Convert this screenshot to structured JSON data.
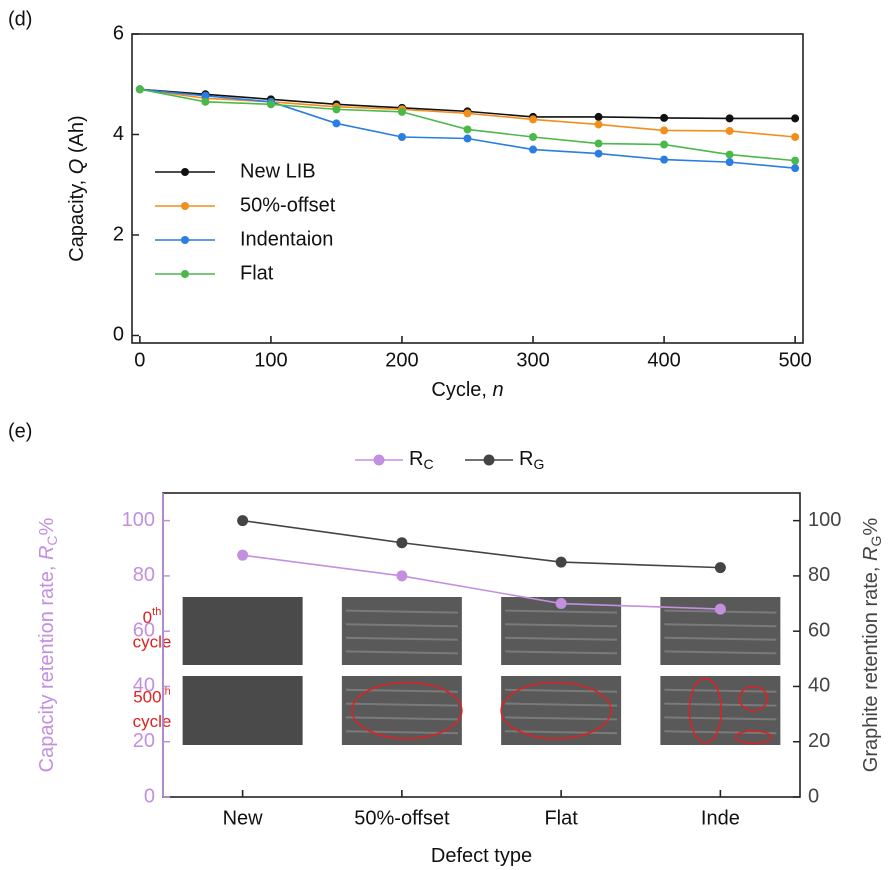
{
  "chart_data": [
    {
      "type": "line",
      "panel_label": "(d)",
      "xlabel": [
        "Cycle, ",
        "n"
      ],
      "ylabel": [
        "Capacity, ",
        "Q",
        " (Ah)"
      ],
      "x": [
        0,
        50,
        100,
        150,
        200,
        250,
        300,
        350,
        400,
        450,
        500
      ],
      "xlim": [
        -6,
        506
      ],
      "xticks": [
        0,
        100,
        200,
        300,
        400,
        500
      ],
      "ylim": [
        -0.15,
        6
      ],
      "yticks": [
        0,
        2,
        4,
        6
      ],
      "legend": "lower left",
      "series": [
        {
          "name": "New LIB",
          "color": "#111111",
          "values": [
            4.9,
            4.8,
            4.7,
            4.6,
            4.53,
            4.46,
            4.35,
            4.35,
            4.33,
            4.32,
            4.32
          ]
        },
        {
          "name": "50%-offset",
          "color": "#f28e1c",
          "values": [
            4.9,
            4.72,
            4.65,
            4.55,
            4.5,
            4.42,
            4.3,
            4.2,
            4.08,
            4.07,
            3.95
          ]
        },
        {
          "name": "Indentaion",
          "color": "#2a7de1",
          "values": [
            4.9,
            4.77,
            4.65,
            4.22,
            3.95,
            3.92,
            3.7,
            3.62,
            3.5,
            3.45,
            3.33
          ]
        },
        {
          "name": "Flat",
          "color": "#4cb84c",
          "values": [
            4.9,
            4.65,
            4.6,
            4.5,
            4.45,
            4.1,
            3.95,
            3.82,
            3.8,
            3.6,
            3.48
          ]
        }
      ]
    },
    {
      "type": "line",
      "panel_label": "(e)",
      "xlabel": [
        "Defect type"
      ],
      "ylabel": [
        "Capacity retention rate, ",
        "R",
        "C",
        "%"
      ],
      "y2label": [
        "Graphite retention rate, ",
        "R",
        "G",
        "%"
      ],
      "categories": [
        "New",
        "50%-offset",
        "Flat",
        "Inde"
      ],
      "ylim": [
        0,
        110
      ],
      "yticks": [
        0,
        20,
        40,
        60,
        80,
        100
      ],
      "y2lim": [
        0,
        110
      ],
      "y2ticks": [
        0,
        20,
        40,
        60,
        80,
        100
      ],
      "legend": "top",
      "row_labels": [
        {
          "text": "0",
          "sup": "th",
          "line2": "cycle"
        },
        {
          "text": "500",
          "sup": "th",
          "line2": "cycle"
        }
      ],
      "series": [
        {
          "name": "R",
          "name_sub": "C",
          "color": "#c38fe0",
          "values": [
            87.5,
            80,
            70,
            68
          ]
        },
        {
          "name": "R",
          "name_sub": "G",
          "color": "#444444",
          "axis": "y2",
          "values": [
            100,
            92,
            85,
            83
          ]
        }
      ]
    }
  ]
}
